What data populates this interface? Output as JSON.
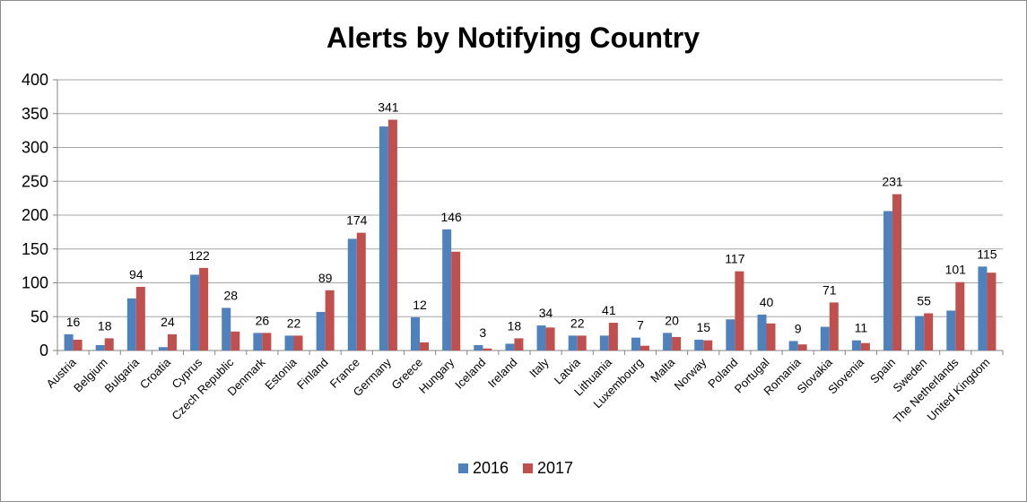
{
  "chart_data": {
    "type": "bar",
    "title": "Alerts by Notifying Country",
    "xlabel": "",
    "ylabel": "",
    "ylim": [
      0,
      400
    ],
    "yticks": [
      0,
      50,
      100,
      150,
      200,
      250,
      300,
      350,
      400
    ],
    "grid": true,
    "legend_position": "bottom",
    "categories": [
      "Austria",
      "Belgium",
      "Bulgaria",
      "Croatia",
      "Cyprus",
      "Czech Republic",
      "Denmark",
      "Estonia",
      "Finland",
      "France",
      "Germany",
      "Greece",
      "Hungary",
      "Iceland",
      "Ireland",
      "Italy",
      "Latvia",
      "Lithuania",
      "Luxembourg",
      "Malta",
      "Norway",
      "Poland",
      "Portugal",
      "Romania",
      "Slovakia",
      "Slovenia",
      "Spain",
      "Sweden",
      "The Netherlands",
      "United Kingdom"
    ],
    "series": [
      {
        "name": "2016",
        "color": "#4f81bd",
        "values": [
          24,
          8,
          77,
          5,
          112,
          63,
          26,
          22,
          57,
          165,
          331,
          49,
          179,
          8,
          10,
          37,
          22,
          22,
          19,
          26,
          16,
          46,
          53,
          14,
          35,
          15,
          206,
          51,
          59,
          124
        ]
      },
      {
        "name": "2017",
        "color": "#c0504d",
        "values": [
          16,
          18,
          94,
          24,
          122,
          28,
          26,
          22,
          89,
          174,
          341,
          12,
          146,
          3,
          18,
          34,
          22,
          41,
          7,
          20,
          15,
          117,
          40,
          9,
          71,
          11,
          231,
          55,
          101,
          115
        ],
        "data_labels": [
          "16",
          "18",
          "94",
          "24",
          "122",
          "28",
          "26",
          "22",
          "89",
          "174",
          "341",
          "12",
          "146",
          "3",
          "18",
          "34",
          "22",
          "41",
          "7",
          "20",
          "15",
          "117",
          "40",
          "9",
          "71",
          "11",
          "231",
          "55",
          "101",
          "115"
        ]
      }
    ]
  }
}
